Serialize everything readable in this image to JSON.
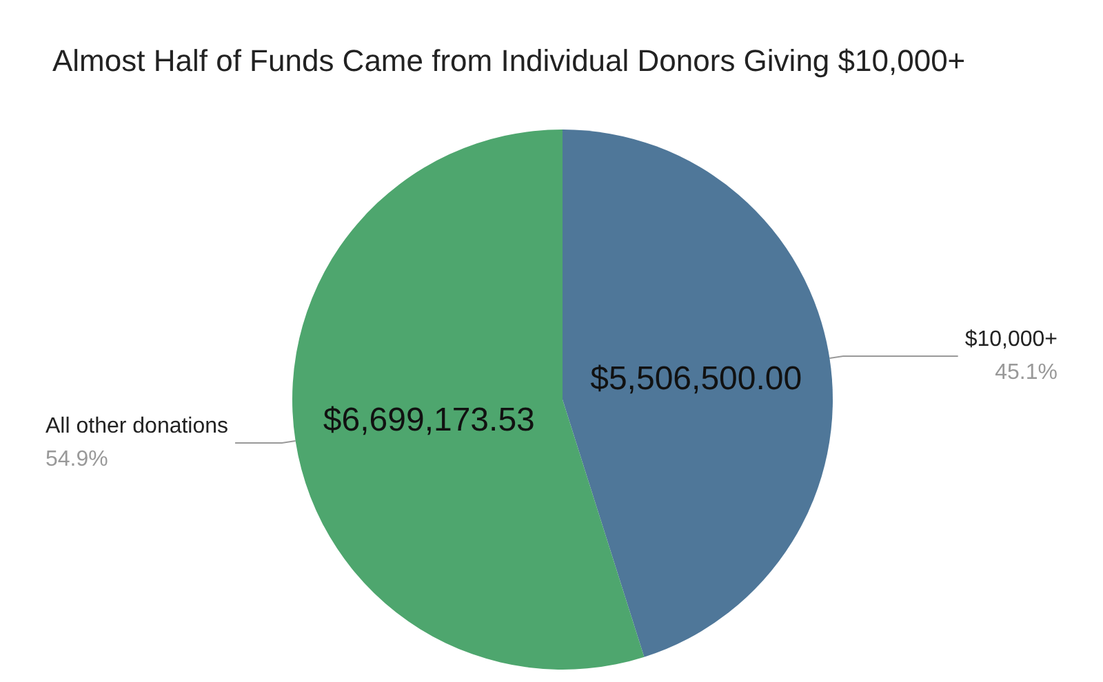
{
  "chart_data": {
    "type": "pie",
    "title": "Almost Half of Funds Came from Individual Donors Giving $10,000+",
    "categories": [
      "$10,000+",
      "All other donations"
    ],
    "values": [
      5506500.0,
      6699173.53
    ],
    "value_labels": [
      "$5,506,500.00",
      "$6,699,173.53"
    ],
    "colors": [
      "#4f7799",
      "#4ea66e"
    ],
    "annotations": [
      "45.1%",
      "54.9%"
    ],
    "legend": false
  }
}
